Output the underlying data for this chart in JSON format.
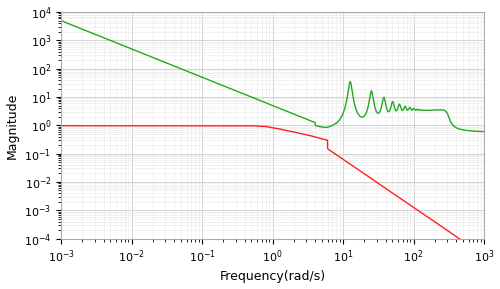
{
  "title": "",
  "xlabel": "Frequency(rad/s)",
  "ylabel": "Magnitude",
  "xlim_log": [
    -3,
    3
  ],
  "ylim_log": [
    -4,
    4
  ],
  "red_color": "#ff2020",
  "green_color": "#22aa22",
  "background_color": "#ffffff",
  "figure_bg": "#ffffff",
  "linewidth_red": 1.0,
  "linewidth_green": 1.0,
  "tick_fontsize": 8,
  "label_fontsize": 9
}
